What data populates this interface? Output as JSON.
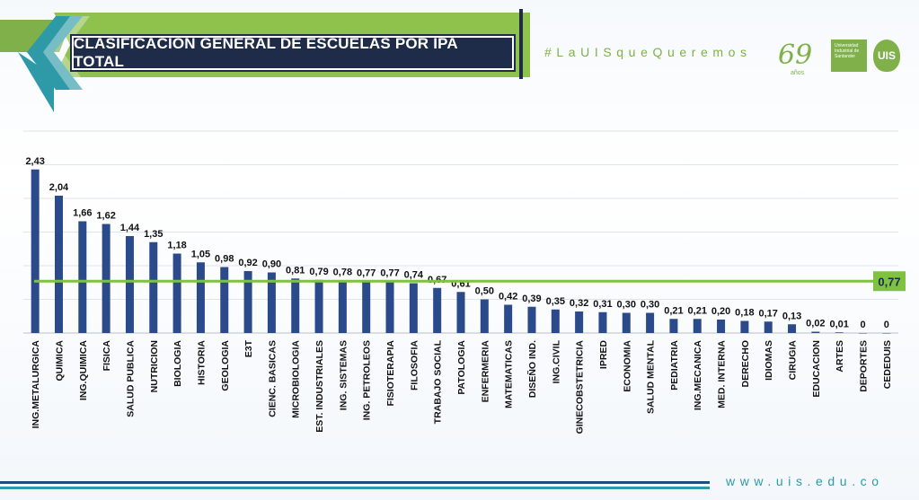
{
  "header": {
    "title": "CLASIFICACIÓN GENERAL DE ESCUELAS POR IPA TOTAL",
    "hashtag": "#LaUISqueQueremos",
    "anniversary_number": "69",
    "anniversary_label": "años",
    "university_name": "Universidad Industrial de Santander",
    "university_mark": "UIS"
  },
  "footer": {
    "url": "www.uis.edu.co"
  },
  "colors": {
    "bar": "#2b4a8b",
    "reference_line": "#7fc242",
    "brand_green": "#7fb04a",
    "brand_teal": "#2e9aa8",
    "navy": "#1e2c4a"
  },
  "chart_data": {
    "type": "bar",
    "title": "CLASIFICACIÓN GENERAL DE ESCUELAS POR IPA TOTAL",
    "xlabel": "",
    "ylabel": "",
    "ylim": [
      0,
      3
    ],
    "grid": true,
    "categories": [
      "ING.METALURGICA",
      "QUIMICA",
      "ING.QUIMICA",
      "FISICA",
      "SALUD PUBLICA",
      "NUTRICION",
      "BIOLOGIA",
      "HISTORIA",
      "GEOLOGIA",
      "E3T",
      "CIENC. BASICAS",
      "MICROBIOLOGIA",
      "EST. INDUSTRIALES",
      "ING. SISTEMAS",
      "ING. PETROLEOS",
      "FISIOTERAPIA",
      "FILOSOFIA",
      "TRABAJO SOCIAL",
      "PATOLOGIA",
      "ENFERMERIA",
      "MATEMATICAS",
      "DISEÑO IND.",
      "ING.CIVIL",
      "GINECOBSTETRICIA",
      "IPRED",
      "ECONOMIA",
      "SALUD MENTAL",
      "PEDIATRIA",
      "ING.MECANICA",
      "MED. INTERNA",
      "DERECHO",
      "IDIOMAS",
      "CIRUGIA",
      "EDUCACION",
      "ARTES",
      "DEPORTES",
      "CEDEDUIS"
    ],
    "values": [
      2.43,
      2.04,
      1.66,
      1.62,
      1.44,
      1.35,
      1.18,
      1.05,
      0.98,
      0.92,
      0.9,
      0.81,
      0.79,
      0.78,
      0.77,
      0.77,
      0.74,
      0.67,
      0.61,
      0.5,
      0.42,
      0.39,
      0.35,
      0.32,
      0.31,
      0.3,
      0.3,
      0.21,
      0.21,
      0.2,
      0.18,
      0.17,
      0.13,
      0.02,
      0.01,
      0,
      0
    ],
    "value_labels": [
      "2,43",
      "2,04",
      "1,66",
      "1,62",
      "1,44",
      "1,35",
      "1,18",
      "1,05",
      "0,98",
      "0,92",
      "0,90",
      "0,81",
      "0,79",
      "0,78",
      "0,77",
      "0,77",
      "0,74",
      "0,67",
      "0,61",
      "0,50",
      "0,42",
      "0,39",
      "0,35",
      "0,32",
      "0,31",
      "0,30",
      "0,30",
      "0,21",
      "0,21",
      "0,20",
      "0,18",
      "0,17",
      "0,13",
      "0,02",
      "0,01",
      "0",
      "0"
    ],
    "reference_line": {
      "value": 0.77,
      "label": "0,77"
    }
  }
}
